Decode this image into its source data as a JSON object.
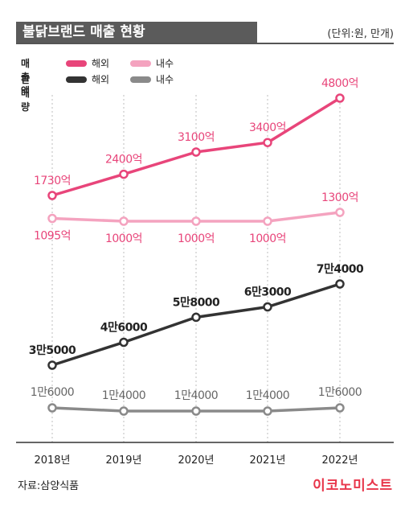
{
  "title": "불닭브랜드 매출 현황",
  "unit": "(단위:원, 만개)",
  "legend": {
    "metric_1": "매출액",
    "metric_2": "판매량",
    "overseas": "해외",
    "domestic": "내수"
  },
  "source": "자료:삼양식품",
  "brand": "이코노미스트",
  "colors": {
    "sales_overseas": "#e8457a",
    "sales_domestic": "#f4a3bf",
    "volume_overseas": "#333333",
    "volume_domestic": "#8a8a8a"
  },
  "chart_data": {
    "type": "line",
    "categories": [
      "2018년",
      "2019년",
      "2020년",
      "2021년",
      "2022년"
    ],
    "series": [
      {
        "name": "매출액 해외",
        "values": [
          1730,
          2400,
          3100,
          3400,
          4800
        ],
        "labels": [
          "1730억",
          "2400억",
          "3100억",
          "3400억",
          "4800억"
        ]
      },
      {
        "name": "매출액 내수",
        "values": [
          1095,
          1000,
          1000,
          1000,
          1300
        ],
        "labels": [
          "1095억",
          "1000억",
          "1000억",
          "1000억",
          "1300억"
        ]
      },
      {
        "name": "판매량 해외",
        "values": [
          35000,
          46000,
          58000,
          63000,
          74000
        ],
        "labels": [
          "3만5000",
          "4만6000",
          "5만8000",
          "6만3000",
          "7만4000"
        ]
      },
      {
        "name": "판매량 내수",
        "values": [
          16000,
          14000,
          14000,
          14000,
          16000
        ],
        "labels": [
          "1만6000",
          "1만4000",
          "1만4000",
          "1만4000",
          "1만6000"
        ]
      }
    ]
  }
}
